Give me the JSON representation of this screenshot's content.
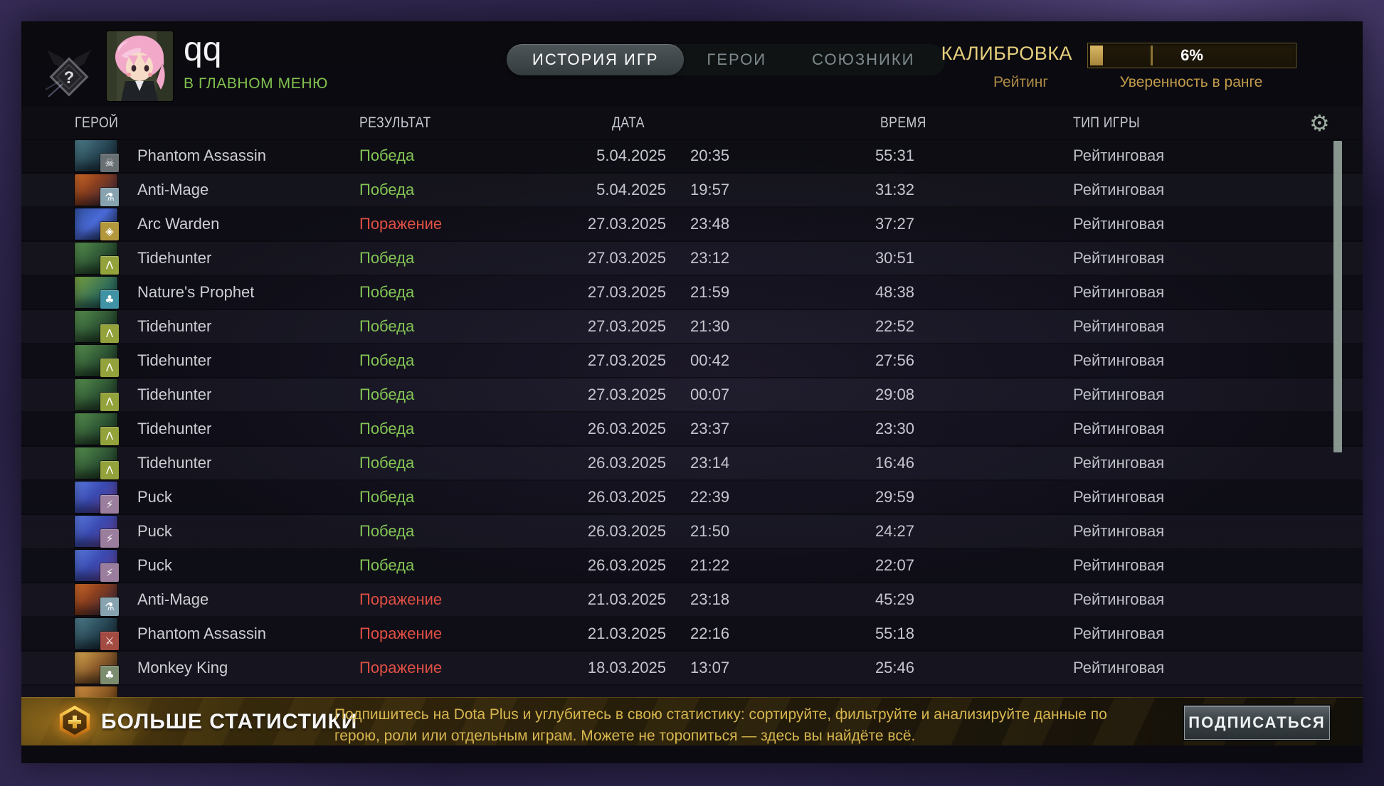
{
  "player": {
    "name": "qq",
    "status": "В ГЛАВНОМ МЕНЮ",
    "status_color": "#82c24e"
  },
  "rank_badge": {
    "glyph": "?"
  },
  "tabs": [
    {
      "id": "history",
      "label": "ИСТОРИЯ ИГР",
      "active": true
    },
    {
      "id": "heroes",
      "label": "ГЕРОИ",
      "active": false
    },
    {
      "id": "allies",
      "label": "СОЮЗНИКИ",
      "active": false
    }
  ],
  "calibration": {
    "title": "КАЛИБРОВКА",
    "rating_label": "Рейтинг",
    "confidence_label": "Уверенность в ранге",
    "percent": 6,
    "percent_label": "6%",
    "tick_percent": 30,
    "gold_color": "#e6cf7c",
    "fill_color": "#c7a24b"
  },
  "table_headers": {
    "hero": "ГЕРОЙ",
    "result": "РЕЗУЛЬТАТ",
    "date": "ДАТА",
    "time": "ВРЕМЯ",
    "mode": "ТИП ИГРЫ"
  },
  "icons": {
    "settings": "⚙"
  },
  "result_styles": {
    "win": {
      "label": "Победа",
      "color": "#83c454"
    },
    "loss": {
      "label": "Поражение",
      "color": "#df4f44"
    }
  },
  "heroes": {
    "phantom-assassin": {
      "name": "Phantom Assassin",
      "portrait": "linear-gradient(135deg,#4d7d8a 0%,#24414f 55%,#131d26 100%)"
    },
    "anti-mage": {
      "name": "Anti-Mage",
      "portrait": "linear-gradient(135deg,#d06a28 0%,#8a3f1e 40%,#262046 100%)"
    },
    "arc-warden": {
      "name": "Arc Warden",
      "portrait": "linear-gradient(135deg,#30509e 0%,#4a6ad8 45%,#101a30 100%)"
    },
    "tidehunter": {
      "name": "Tidehunter",
      "portrait": "linear-gradient(135deg,#57904f 0%,#2c5232 55%,#15241a 100%)"
    },
    "natures-prophet": {
      "name": "Nature's Prophet",
      "portrait": "linear-gradient(135deg,#7aa23f 0%,#2e6a5a 60%,#1a3a3a 100%)"
    },
    "puck": {
      "name": "Puck",
      "portrait": "linear-gradient(135deg,#5a7ae0 0%,#3a4ab0 45%,#6a3a8a 100%)"
    },
    "monkey-king": {
      "name": "Monkey King",
      "portrait": "linear-gradient(135deg,#d8a84f 0%,#8a5a2a 50%,#3a2a1a 100%)"
    }
  },
  "matches": [
    {
      "hero_key": "phantom-assassin",
      "result": "win",
      "date": "5.04.2025",
      "time": "20:35",
      "duration": "55:31",
      "mode": "Рейтинговая",
      "badge": {
        "icon": "skull-badge-icon",
        "glyph": "☠",
        "bg": "#687074"
      }
    },
    {
      "hero_key": "anti-mage",
      "result": "win",
      "date": "5.04.2025",
      "time": "19:57",
      "duration": "31:32",
      "mode": "Рейтинговая",
      "badge": {
        "icon": "flask-badge-icon",
        "glyph": "⚗",
        "bg": "#87a3b0"
      }
    },
    {
      "hero_key": "arc-warden",
      "result": "loss",
      "date": "27.03.2025",
      "time": "23:48",
      "duration": "37:27",
      "mode": "Рейтинговая",
      "badge": {
        "icon": "gem-badge-icon",
        "glyph": "◈",
        "bg": "#b3973c"
      }
    },
    {
      "hero_key": "tidehunter",
      "result": "win",
      "date": "27.03.2025",
      "time": "23:12",
      "duration": "30:51",
      "mode": "Рейтинговая",
      "badge": {
        "icon": "anchor-badge-icon",
        "glyph": "Λ",
        "bg": "#94a23c"
      }
    },
    {
      "hero_key": "natures-prophet",
      "result": "win",
      "date": "27.03.2025",
      "time": "21:59",
      "duration": "48:38",
      "mode": "Рейтинговая",
      "badge": {
        "icon": "tree-badge-icon",
        "glyph": "♣",
        "bg": "#3f93a4"
      }
    },
    {
      "hero_key": "tidehunter",
      "result": "win",
      "date": "27.03.2025",
      "time": "21:30",
      "duration": "22:52",
      "mode": "Рейтинговая",
      "badge": {
        "icon": "anchor-badge-icon",
        "glyph": "Λ",
        "bg": "#94a23c"
      }
    },
    {
      "hero_key": "tidehunter",
      "result": "win",
      "date": "27.03.2025",
      "time": "00:42",
      "duration": "27:56",
      "mode": "Рейтинговая",
      "badge": {
        "icon": "anchor-badge-icon",
        "glyph": "Λ",
        "bg": "#94a23c"
      }
    },
    {
      "hero_key": "tidehunter",
      "result": "win",
      "date": "27.03.2025",
      "time": "00:07",
      "duration": "29:08",
      "mode": "Рейтинговая",
      "badge": {
        "icon": "anchor-badge-icon",
        "glyph": "Λ",
        "bg": "#94a23c"
      }
    },
    {
      "hero_key": "tidehunter",
      "result": "win",
      "date": "26.03.2025",
      "time": "23:37",
      "duration": "23:30",
      "mode": "Рейтинговая",
      "badge": {
        "icon": "anchor-badge-icon",
        "glyph": "Λ",
        "bg": "#94a23c"
      }
    },
    {
      "hero_key": "tidehunter",
      "result": "win",
      "date": "26.03.2025",
      "time": "23:14",
      "duration": "16:46",
      "mode": "Рейтинговая",
      "badge": {
        "icon": "anchor-badge-icon",
        "glyph": "Λ",
        "bg": "#94a23c"
      }
    },
    {
      "hero_key": "puck",
      "result": "win",
      "date": "26.03.2025",
      "time": "22:39",
      "duration": "29:59",
      "mode": "Рейтинговая",
      "badge": {
        "icon": "runner-badge-icon",
        "glyph": "⚡",
        "bg": "#9b7d9d"
      }
    },
    {
      "hero_key": "puck",
      "result": "win",
      "date": "26.03.2025",
      "time": "21:50",
      "duration": "24:27",
      "mode": "Рейтинговая",
      "badge": {
        "icon": "runner-badge-icon",
        "glyph": "⚡",
        "bg": "#9b7d9d"
      }
    },
    {
      "hero_key": "puck",
      "result": "win",
      "date": "26.03.2025",
      "time": "21:22",
      "duration": "22:07",
      "mode": "Рейтинговая",
      "badge": {
        "icon": "runner-badge-icon",
        "glyph": "⚡",
        "bg": "#9b7d9d"
      }
    },
    {
      "hero_key": "anti-mage",
      "result": "loss",
      "date": "21.03.2025",
      "time": "23:18",
      "duration": "45:29",
      "mode": "Рейтинговая",
      "badge": {
        "icon": "flask-badge-icon",
        "glyph": "⚗",
        "bg": "#87a3b0"
      }
    },
    {
      "hero_key": "phantom-assassin",
      "result": "loss",
      "date": "21.03.2025",
      "time": "22:16",
      "duration": "55:18",
      "mode": "Рейтинговая",
      "badge": {
        "icon": "sword-badge-icon",
        "glyph": "⚔",
        "bg": "#a34a42"
      }
    },
    {
      "hero_key": "monkey-king",
      "result": "loss",
      "date": "18.03.2025",
      "time": "13:07",
      "duration": "25:46",
      "mode": "Рейтинговая",
      "badge": {
        "icon": "tree-badge-icon",
        "glyph": "♣",
        "bg": "#7c8c6e"
      }
    }
  ],
  "partial_match": {
    "portrait": "linear-gradient(135deg,#d49143 0%,#7e4f1e 60%,#3a2a14 100%)"
  },
  "banner": {
    "title": "БОЛЬШЕ СТАТИСТИКИ",
    "body": "Подпишитесь на Dota Plus и углубитесь в свою статистику: сортируйте, фильтруйте и анализируйте данные по герою, роли или отдельным играм. Можете не торопиться — здесь вы найдёте всё.",
    "button": "ПОДПИСАТЬСЯ"
  }
}
